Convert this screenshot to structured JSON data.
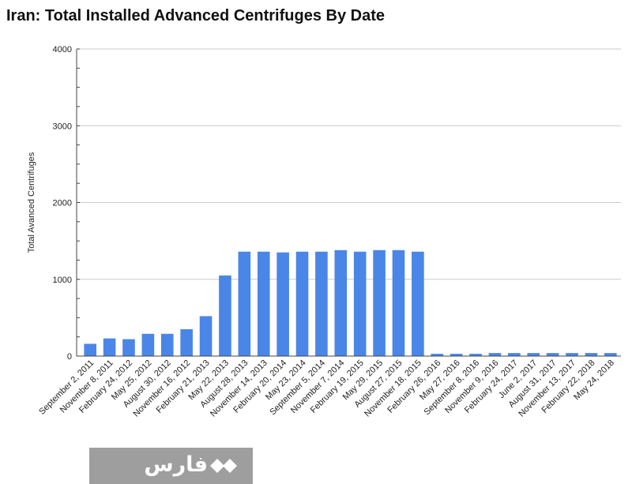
{
  "chart_data": {
    "type": "bar",
    "title": "Iran: Total Installed Advanced Centrifuges By Date",
    "ylabel": "Total Avanced Centrifuges",
    "xlabel": "",
    "ylim": [
      0,
      4000
    ],
    "yticks": [
      "0",
      "1000",
      "2000",
      "3000",
      "4000"
    ],
    "grid": true,
    "legend": "none",
    "bar_color": "#4a86e8",
    "categories": [
      "September 2, 2011",
      "November 8, 2011",
      "February 24, 2012",
      "May 25, 2012",
      "August 30, 2012",
      "November 16, 2012",
      "February 21, 2013",
      "May 22, 2013",
      "August 28, 2013",
      "November 14, 2013",
      "February 20, 2014",
      "May 23, 2014",
      "September 5, 2014",
      "November 7, 2014",
      "February 19, 2015",
      "May 29, 2015",
      "August 27, 2015",
      "November 18, 2015",
      "February 26, 2016",
      "May 27, 2016",
      "September 8, 2016",
      "November 9, 2016",
      "February 24, 2017",
      "June 2, 2017",
      "August 31, 2017",
      "November 13, 2017",
      "February 22, 2018",
      "May 24, 2018"
    ],
    "values": [
      160,
      230,
      220,
      290,
      290,
      350,
      520,
      1050,
      1360,
      1360,
      1350,
      1360,
      1360,
      1380,
      1360,
      1380,
      1380,
      1360,
      30,
      30,
      30,
      40,
      40,
      40,
      40,
      40,
      40,
      40
    ]
  },
  "logo": {
    "text": "فارس",
    "icon": "diamond-logo-icon",
    "background": "#9e9e9e"
  }
}
